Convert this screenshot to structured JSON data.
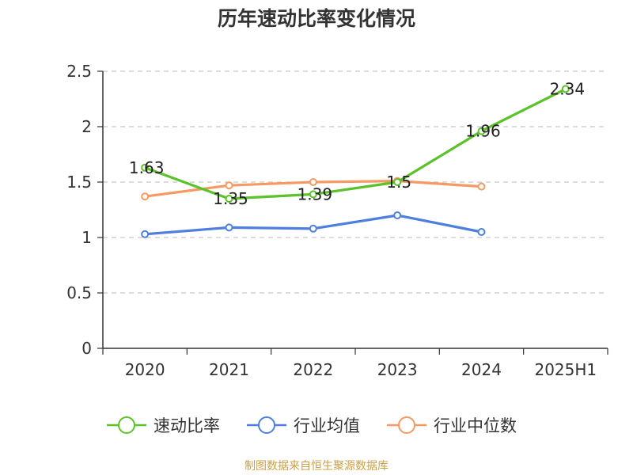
{
  "chart_data": {
    "type": "line",
    "title": "历年速动比率变化情况",
    "categories": [
      "2020",
      "2021",
      "2022",
      "2023",
      "2024",
      "2025H1"
    ],
    "y_ticks": [
      "0",
      "0.5",
      "1",
      "1.5",
      "2",
      "2.5"
    ],
    "ylim": [
      0,
      2.5
    ],
    "grid": true,
    "legend_position": "bottom",
    "series": [
      {
        "name": "速动比率",
        "color": "#5cc22a",
        "show_labels": true,
        "values": [
          1.63,
          1.35,
          1.39,
          1.5,
          1.96,
          2.34
        ],
        "labels": [
          "1.63",
          "1.35",
          "1.39",
          "1.5",
          "1.96",
          "2.34"
        ]
      },
      {
        "name": "行业均值",
        "color": "#4f7fde",
        "show_labels": false,
        "values": [
          1.03,
          1.09,
          1.08,
          1.2,
          1.05,
          null
        ]
      },
      {
        "name": "行业中位数",
        "color": "#f59a62",
        "show_labels": false,
        "values": [
          1.37,
          1.47,
          1.5,
          1.51,
          1.46,
          null
        ]
      }
    ]
  },
  "footer": {
    "source": "制图数据来自恒生聚源数据库"
  }
}
